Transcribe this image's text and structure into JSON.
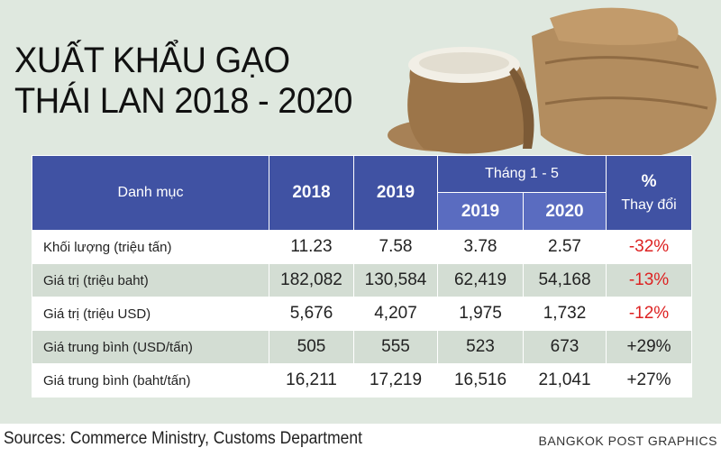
{
  "title": [
    "XUẤT KHẨU GẠO",
    "THÁI LAN 2018 - 2020"
  ],
  "table": {
    "header": {
      "category": "Danh mục",
      "years": [
        "2018",
        "2019"
      ],
      "period": "Tháng 1 - 5",
      "period_years": [
        "2019",
        "2020"
      ],
      "change": [
        "%",
        "Thay đổi"
      ]
    },
    "rows": [
      [
        "Khối lượng (triệu tấn)",
        "11.23",
        "7.58",
        "3.78",
        "2.57",
        "-32%"
      ],
      [
        "Giá trị (triệu baht)",
        "182,082",
        "130,584",
        "62,419",
        "54,168",
        "-13%"
      ],
      [
        "Giá trị (triệu USD)",
        "5,676",
        "4,207",
        "1,975",
        "1,732",
        "-12%"
      ],
      [
        "Giá trung bình (USD/tấn)",
        "505",
        "555",
        "523",
        "673",
        "+29%"
      ],
      [
        "Giá trung bình (baht/tấn)",
        "16,211",
        "17,219",
        "16,516",
        "21,041",
        "+27%"
      ]
    ]
  },
  "source": "Sources: Commerce Ministry, Customs Department",
  "credit": "BANGKOK POST GRAPHICS"
}
